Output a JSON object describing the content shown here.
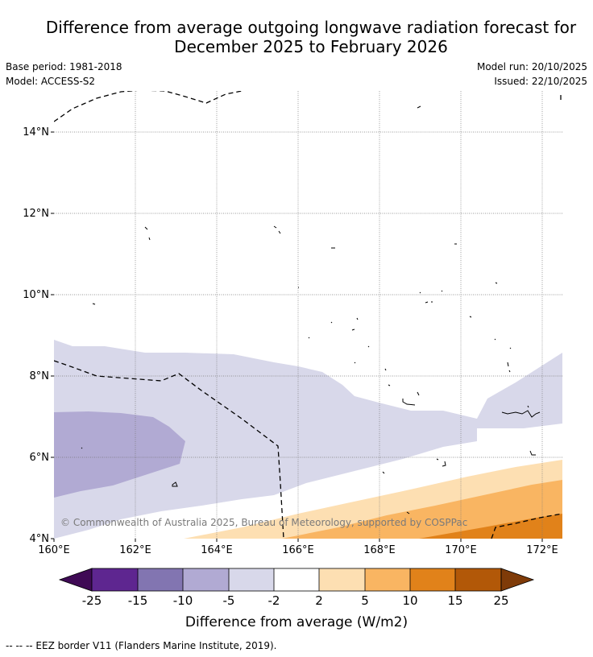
{
  "title_line1": "Difference from average outgoing longwave radiation forecast for",
  "title_line2": "December 2025 to February 2026",
  "base_period": "Base period: 1981-2018",
  "model": "Model: ACCESS-S2",
  "model_run": "Model run: 20/10/2025",
  "issued": "Issued: 22/10/2025",
  "copyright": "© Commonwealth of Australia 2025, Bureau of Meteorology, supported by COSPPac",
  "map": {
    "lon_range": [
      160,
      172.5
    ],
    "lat_range": [
      4,
      15
    ],
    "lat_labels": [
      "4°N",
      "6°N",
      "8°N",
      "10°N",
      "12°N",
      "14°N"
    ],
    "lon_labels": [
      "160°E",
      "162°E",
      "164°E",
      "166°E",
      "168°E",
      "170°E",
      "172°E"
    ]
  },
  "colorbar": {
    "ticks": [
      "-25",
      "-15",
      "-10",
      "-5",
      "-2",
      "2",
      "5",
      "10",
      "15",
      "25"
    ],
    "label": "Difference from average (W/m2)",
    "colors": {
      "lt_-25": "#3f0a55",
      "-25_-15": "#5e2690",
      "-15_-10": "#8275b1",
      "-10_-5": "#b1aad3",
      "-5_-2": "#d8d8ea",
      "-2_2": "#ffffff",
      "2_5": "#fddfb2",
      "5_10": "#f9b562",
      "10_15": "#e1821a",
      "15_25": "#b25808",
      "gt_25": "#7f3b08"
    }
  },
  "legend_line": "-- -- -- EEZ border V11 (Flanders Marine Institute, 2019)."
}
